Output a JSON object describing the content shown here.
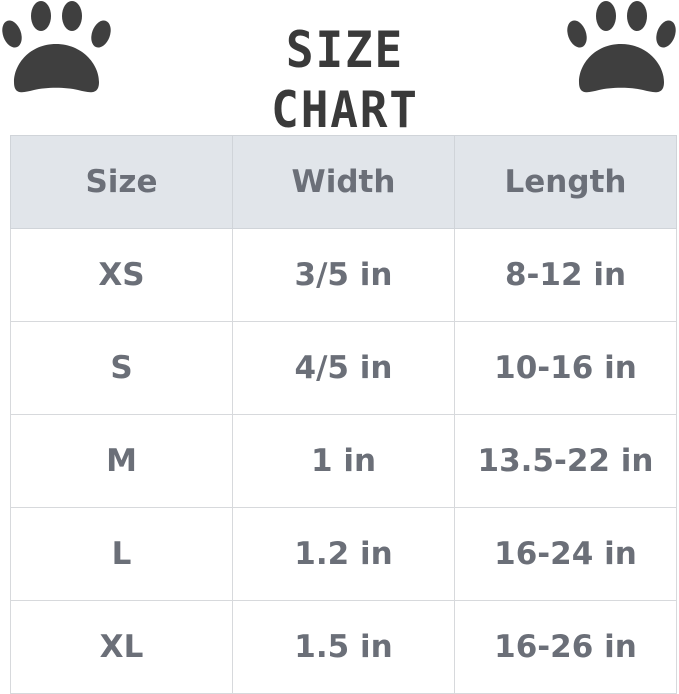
{
  "title": "SIZE CHART",
  "icons": {
    "left": "paw-print-icon",
    "right": "paw-print-icon"
  },
  "colors": {
    "text": "#6b6f78",
    "header_bg": "#e1e5ea",
    "paw": "#3f3f3f"
  },
  "table": {
    "headers": [
      "Size",
      "Width",
      "Length"
    ],
    "rows": [
      [
        "XS",
        "3/5 in",
        "8-12 in"
      ],
      [
        "S",
        "4/5 in",
        "10-16 in"
      ],
      [
        "M",
        "1 in",
        "13.5-22 in"
      ],
      [
        "L",
        "1.2 in",
        "16-24 in"
      ],
      [
        "XL",
        "1.5 in",
        "16-26 in"
      ]
    ]
  }
}
